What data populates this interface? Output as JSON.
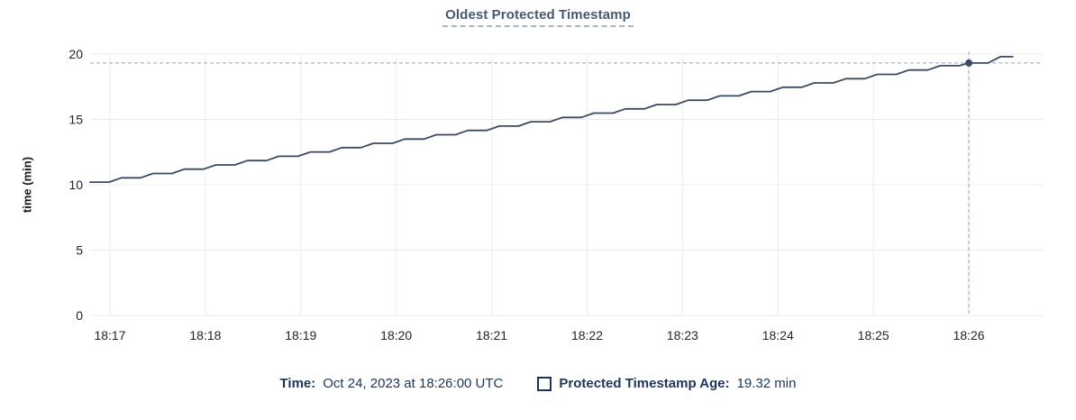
{
  "legend": {
    "time_label": "Time:",
    "time_value": "Oct 24, 2023 at 18:26:00 UTC",
    "series_label": "Protected Timestamp Age:",
    "series_value": "19.32 min"
  },
  "colors": {
    "background": "#ffffff",
    "title_text": "#475872",
    "title_underline": "#a9b4c6",
    "legend_text": "#1d3657",
    "tick_text": "#242424",
    "grid": "#ececec",
    "line": "#3b4a63",
    "crosshair": "#a3bac9"
  },
  "chart_data": {
    "type": "line",
    "title": "Oldest Protected Timestamp",
    "xlabel": "",
    "ylabel": "time (min)",
    "x_unit": "minutes after 18:17:00 UTC",
    "x_ticks": [
      "18:17",
      "18:18",
      "18:19",
      "18:20",
      "18:21",
      "18:22",
      "18:23",
      "18:24",
      "18:25",
      "18:26"
    ],
    "y_ticks": [
      0,
      5,
      10,
      15,
      20
    ],
    "ylim": [
      0,
      20
    ],
    "xlim": [
      -0.21,
      9.98
    ],
    "grid": true,
    "legend_position": "bottom",
    "series": [
      {
        "name": "Protected Timestamp Age",
        "color": "#3b4a63",
        "points": [
          [
            -0.21,
            10.2
          ],
          [
            -0.01,
            10.2
          ],
          [
            0.12,
            10.53
          ],
          [
            0.32,
            10.53
          ],
          [
            0.45,
            10.86
          ],
          [
            0.65,
            10.86
          ],
          [
            0.78,
            11.19
          ],
          [
            0.98,
            11.19
          ],
          [
            1.11,
            11.52
          ],
          [
            1.31,
            11.52
          ],
          [
            1.44,
            11.85
          ],
          [
            1.64,
            11.85
          ],
          [
            1.77,
            12.18
          ],
          [
            1.97,
            12.18
          ],
          [
            2.1,
            12.51
          ],
          [
            2.3,
            12.51
          ],
          [
            2.43,
            12.84
          ],
          [
            2.63,
            12.84
          ],
          [
            2.76,
            13.17
          ],
          [
            2.96,
            13.17
          ],
          [
            3.09,
            13.5
          ],
          [
            3.29,
            13.5
          ],
          [
            3.42,
            13.83
          ],
          [
            3.62,
            13.83
          ],
          [
            3.75,
            14.16
          ],
          [
            3.95,
            14.16
          ],
          [
            4.08,
            14.49
          ],
          [
            4.28,
            14.49
          ],
          [
            4.41,
            14.82
          ],
          [
            4.61,
            14.82
          ],
          [
            4.74,
            15.15
          ],
          [
            4.94,
            15.15
          ],
          [
            5.07,
            15.48
          ],
          [
            5.27,
            15.48
          ],
          [
            5.4,
            15.81
          ],
          [
            5.6,
            15.81
          ],
          [
            5.73,
            16.14
          ],
          [
            5.93,
            16.14
          ],
          [
            6.06,
            16.47
          ],
          [
            6.26,
            16.47
          ],
          [
            6.39,
            16.8
          ],
          [
            6.59,
            16.8
          ],
          [
            6.72,
            17.13
          ],
          [
            6.92,
            17.13
          ],
          [
            7.05,
            17.46
          ],
          [
            7.25,
            17.46
          ],
          [
            7.38,
            17.79
          ],
          [
            7.58,
            17.79
          ],
          [
            7.71,
            18.12
          ],
          [
            7.91,
            18.12
          ],
          [
            8.04,
            18.45
          ],
          [
            8.24,
            18.45
          ],
          [
            8.37,
            18.78
          ],
          [
            8.57,
            18.78
          ],
          [
            8.7,
            19.11
          ],
          [
            8.9,
            19.11
          ],
          [
            9.0,
            19.32
          ],
          [
            9.2,
            19.32
          ],
          [
            9.33,
            19.8
          ],
          [
            9.46,
            19.8
          ]
        ]
      }
    ],
    "crosshair": {
      "x": 9.0,
      "y": 19.32,
      "x_label": "18:26:00",
      "value_label": "19.32 min"
    }
  }
}
